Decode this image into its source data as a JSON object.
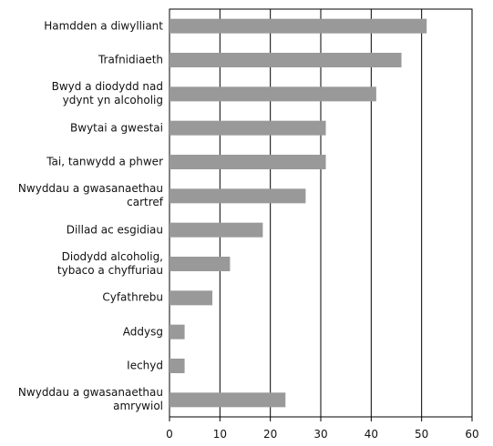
{
  "chart_data": {
    "type": "barh",
    "categories": [
      "Hamdden a diwylliant",
      "Trafnidiaeth",
      "Bwyd a diodydd nad\nydynt yn alcoholig",
      "Bwytai a gwestai",
      "Tai, tanwydd a phwer",
      "Nwyddau a gwasanaethau\ncartref",
      "Dillad ac esgidiau",
      "Diodydd alcoholig,\ntybaco a chyffuriau",
      "Cyfathrebu",
      "Addysg",
      "Iechyd",
      "Nwyddau a gwasanaethau\namrywiol"
    ],
    "values": [
      51,
      46,
      41,
      31,
      31,
      27,
      18.5,
      12,
      8.5,
      3,
      3,
      23
    ],
    "color": "#999999",
    "xlim": [
      0,
      60
    ],
    "xticks": [
      0,
      10,
      20,
      30,
      40,
      50,
      60
    ],
    "grid": true
  }
}
